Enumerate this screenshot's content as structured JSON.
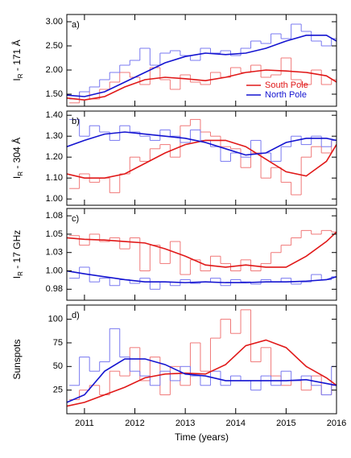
{
  "chart_data": [
    {
      "type": "line",
      "label": "a)",
      "ylabel": [
        "I",
        "R",
        " - 171 Å"
      ],
      "xlim": [
        2010.65,
        2016
      ],
      "ylim": [
        1.25,
        3.15
      ],
      "yticks": [
        {
          "value": 1.5,
          "label": "1.50"
        },
        {
          "value": 2.0,
          "label": "2.00"
        },
        {
          "value": 2.5,
          "label": "2.50"
        },
        {
          "value": 3.0,
          "label": "3.00"
        }
      ],
      "legend": "lower right",
      "series": [
        {
          "style": "step",
          "color": "#f07878",
          "x": [
            2010.7,
            2010.9,
            2011.1,
            2011.3,
            2011.5,
            2011.7,
            2011.9,
            2012.1,
            2012.3,
            2012.5,
            2012.7,
            2012.9,
            2013.1,
            2013.3,
            2013.5,
            2013.7,
            2013.9,
            2014.1,
            2014.3,
            2014.5,
            2014.7,
            2014.9,
            2015.1,
            2015.3,
            2015.5,
            2015.7,
            2015.9
          ],
          "values": [
            1.32,
            1.55,
            1.4,
            1.6,
            1.75,
            1.95,
            1.85,
            1.7,
            2.05,
            1.8,
            1.6,
            1.9,
            1.75,
            1.7,
            1.95,
            1.85,
            2.05,
            1.95,
            2.1,
            1.85,
            1.9,
            2.25,
            1.8,
            1.7,
            2.0,
            1.7,
            1.8
          ]
        },
        {
          "style": "step",
          "color": "#7878f0",
          "x": [
            2010.7,
            2010.9,
            2011.1,
            2011.3,
            2011.5,
            2011.7,
            2011.9,
            2012.1,
            2012.3,
            2012.5,
            2012.7,
            2012.9,
            2013.1,
            2013.3,
            2013.5,
            2013.7,
            2013.9,
            2014.1,
            2014.3,
            2014.5,
            2014.7,
            2014.9,
            2015.1,
            2015.3,
            2015.5,
            2015.7,
            2015.9
          ],
          "values": [
            1.4,
            1.55,
            1.65,
            1.8,
            1.95,
            2.1,
            2.2,
            2.45,
            2.1,
            2.35,
            2.4,
            2.3,
            2.2,
            2.45,
            2.35,
            2.4,
            2.3,
            2.45,
            2.6,
            2.55,
            2.75,
            2.65,
            2.95,
            2.8,
            2.6,
            2.5,
            2.65
          ]
        },
        {
          "name": "South Pole",
          "color": "#e01818",
          "x": [
            2010.65,
            2011,
            2011.4,
            2011.8,
            2012.2,
            2012.6,
            2013,
            2013.4,
            2013.8,
            2014.2,
            2014.6,
            2015,
            2015.4,
            2015.8,
            2016
          ],
          "values": [
            1.42,
            1.38,
            1.45,
            1.65,
            1.8,
            1.85,
            1.82,
            1.78,
            1.85,
            1.95,
            2.0,
            1.98,
            1.95,
            1.88,
            1.75
          ]
        },
        {
          "name": "North Pole",
          "color": "#1414d0",
          "x": [
            2010.65,
            2011,
            2011.4,
            2011.8,
            2012.2,
            2012.6,
            2013,
            2013.4,
            2013.8,
            2014.2,
            2014.6,
            2015,
            2015.4,
            2015.8,
            2016
          ],
          "values": [
            1.48,
            1.45,
            1.55,
            1.75,
            1.95,
            2.15,
            2.28,
            2.35,
            2.32,
            2.35,
            2.45,
            2.6,
            2.72,
            2.72,
            2.6
          ]
        }
      ]
    },
    {
      "type": "line",
      "label": "b)",
      "ylabel": [
        "I",
        "R",
        " - 304 Å"
      ],
      "xlim": [
        2010.65,
        2016
      ],
      "ylim": [
        0.97,
        1.42
      ],
      "yticks": [
        {
          "value": 1.0,
          "label": "1.00"
        },
        {
          "value": 1.1,
          "label": "1.10"
        },
        {
          "value": 1.2,
          "label": "1.20"
        },
        {
          "value": 1.3,
          "label": "1.30"
        },
        {
          "value": 1.4,
          "label": "1.40"
        }
      ],
      "series": [
        {
          "style": "step",
          "color": "#f07878",
          "x": [
            2010.7,
            2010.9,
            2011.1,
            2011.3,
            2011.5,
            2011.7,
            2011.9,
            2012.1,
            2012.3,
            2012.5,
            2012.7,
            2012.9,
            2013.1,
            2013.3,
            2013.5,
            2013.7,
            2013.9,
            2014.1,
            2014.3,
            2014.5,
            2014.7,
            2014.9,
            2015.1,
            2015.3,
            2015.5,
            2015.7,
            2015.9
          ],
          "values": [
            1.05,
            1.12,
            1.08,
            1.1,
            1.03,
            1.12,
            1.2,
            1.18,
            1.24,
            1.26,
            1.2,
            1.35,
            1.38,
            1.32,
            1.3,
            1.25,
            1.24,
            1.15,
            1.22,
            1.1,
            1.15,
            1.08,
            1.02,
            1.2,
            1.25,
            1.22,
            1.28
          ]
        },
        {
          "style": "step",
          "color": "#7878f0",
          "x": [
            2010.7,
            2010.9,
            2011.1,
            2011.3,
            2011.5,
            2011.7,
            2011.9,
            2012.1,
            2012.3,
            2012.5,
            2012.7,
            2012.9,
            2013.1,
            2013.3,
            2013.5,
            2013.7,
            2013.9,
            2014.1,
            2014.3,
            2014.5,
            2014.7,
            2014.9,
            2015.1,
            2015.3,
            2015.5,
            2015.7,
            2015.9
          ],
          "values": [
            1.38,
            1.3,
            1.35,
            1.32,
            1.28,
            1.35,
            1.32,
            1.3,
            1.28,
            1.33,
            1.3,
            1.27,
            1.33,
            1.28,
            1.25,
            1.18,
            1.22,
            1.2,
            1.28,
            1.22,
            1.18,
            1.25,
            1.3,
            1.26,
            1.3,
            1.25,
            1.28
          ]
        },
        {
          "color": "#e01818",
          "x": [
            2010.65,
            2011,
            2011.4,
            2011.8,
            2012.2,
            2012.6,
            2013,
            2013.4,
            2013.8,
            2014.2,
            2014.6,
            2015,
            2015.4,
            2015.8,
            2016
          ],
          "values": [
            1.12,
            1.1,
            1.1,
            1.12,
            1.17,
            1.22,
            1.26,
            1.28,
            1.28,
            1.25,
            1.19,
            1.13,
            1.11,
            1.18,
            1.26
          ]
        },
        {
          "color": "#1414d0",
          "x": [
            2010.65,
            2011,
            2011.4,
            2011.8,
            2012.2,
            2012.6,
            2013,
            2013.4,
            2013.8,
            2014.2,
            2014.6,
            2015,
            2015.4,
            2015.8,
            2016
          ],
          "values": [
            1.25,
            1.28,
            1.31,
            1.32,
            1.31,
            1.3,
            1.29,
            1.27,
            1.24,
            1.21,
            1.22,
            1.27,
            1.29,
            1.29,
            1.28
          ]
        }
      ]
    },
    {
      "type": "line",
      "label": "c)",
      "ylabel": [
        "I",
        "R",
        " - 17 GHz"
      ],
      "xlim": [
        2010.65,
        2016
      ],
      "ylim": [
        0.96,
        1.085
      ],
      "yticks": [
        {
          "value": 0.975,
          "label": "0.98"
        },
        {
          "value": 1.0,
          "label": "1.00"
        },
        {
          "value": 1.025,
          "label": "1.03"
        },
        {
          "value": 1.05,
          "label": "1.05"
        },
        {
          "value": 1.075,
          "label": "1.08"
        }
      ],
      "series": [
        {
          "style": "step",
          "color": "#f07878",
          "x": [
            2010.7,
            2010.9,
            2011.1,
            2011.3,
            2011.5,
            2011.7,
            2011.9,
            2012.1,
            2012.3,
            2012.5,
            2012.7,
            2012.9,
            2013.1,
            2013.3,
            2013.5,
            2013.7,
            2013.9,
            2014.1,
            2014.3,
            2014.5,
            2014.7,
            2014.9,
            2015.1,
            2015.3,
            2015.5,
            2015.7,
            2015.9
          ],
          "values": [
            1.048,
            1.035,
            1.05,
            1.04,
            1.045,
            1.03,
            1.045,
            1.0,
            1.035,
            1.01,
            1.04,
            0.995,
            1.015,
            1.0,
            1.02,
            1.01,
            1.0,
            1.015,
            1.0,
            1.01,
            1.025,
            1.035,
            1.045,
            1.055,
            1.05,
            1.055,
            1.053
          ]
        },
        {
          "style": "step",
          "color": "#7878f0",
          "x": [
            2010.7,
            2010.9,
            2011.1,
            2011.3,
            2011.5,
            2011.7,
            2011.9,
            2012.1,
            2012.3,
            2012.5,
            2012.7,
            2012.9,
            2013.1,
            2013.3,
            2013.5,
            2013.7,
            2013.9,
            2014.1,
            2014.3,
            2014.5,
            2014.7,
            2014.9,
            2015.1,
            2015.3,
            2015.5,
            2015.7,
            2015.9
          ],
          "values": [
            0.99,
            1.005,
            0.985,
            0.99,
            0.98,
            0.988,
            0.983,
            0.99,
            0.975,
            0.985,
            0.98,
            0.988,
            0.983,
            0.985,
            0.99,
            0.98,
            0.988,
            0.985,
            0.982,
            0.988,
            0.985,
            0.99,
            0.982,
            0.985,
            0.995,
            0.988,
            0.992
          ]
        },
        {
          "color": "#e01818",
          "x": [
            2010.65,
            2011,
            2011.4,
            2011.8,
            2012.2,
            2012.6,
            2013,
            2013.4,
            2013.8,
            2014.2,
            2014.6,
            2015,
            2015.4,
            2015.8,
            2016
          ],
          "values": [
            1.045,
            1.043,
            1.042,
            1.04,
            1.038,
            1.03,
            1.02,
            1.008,
            1.005,
            1.008,
            1.005,
            1.005,
            1.02,
            1.04,
            1.053
          ]
        },
        {
          "color": "#1414d0",
          "x": [
            2010.65,
            2011,
            2011.4,
            2011.8,
            2012.2,
            2012.6,
            2013,
            2013.4,
            2013.8,
            2014.2,
            2014.6,
            2015,
            2015.4,
            2015.8,
            2016
          ],
          "values": [
            1.0,
            0.996,
            0.992,
            0.988,
            0.985,
            0.985,
            0.984,
            0.985,
            0.984,
            0.984,
            0.985,
            0.985,
            0.986,
            0.988,
            0.992
          ]
        }
      ]
    },
    {
      "type": "line",
      "label": "d)",
      "ylabel": [
        "Sunspots"
      ],
      "xlabel": "Time (years)",
      "xlim": [
        2010.65,
        2016
      ],
      "ylim": [
        0,
        115
      ],
      "xticks": [
        2011,
        2012,
        2013,
        2014,
        2015,
        2016
      ],
      "yticks": [
        25,
        50,
        75,
        100
      ],
      "series": [
        {
          "style": "step",
          "color": "#f07878",
          "x": [
            2010.7,
            2010.9,
            2011.1,
            2011.3,
            2011.5,
            2011.7,
            2011.9,
            2012.1,
            2012.3,
            2012.5,
            2012.7,
            2012.9,
            2013.1,
            2013.3,
            2013.5,
            2013.7,
            2013.9,
            2014.1,
            2014.3,
            2014.5,
            2014.7,
            2014.9,
            2015.1,
            2015.3,
            2015.5,
            2015.7,
            2015.9
          ],
          "values": [
            15,
            25,
            30,
            20,
            45,
            40,
            70,
            35,
            60,
            20,
            50,
            30,
            75,
            45,
            80,
            100,
            85,
            110,
            55,
            70,
            40,
            30,
            35,
            25,
            40,
            20,
            30
          ]
        },
        {
          "style": "step",
          "color": "#7878f0",
          "x": [
            2010.7,
            2010.9,
            2011.1,
            2011.3,
            2011.5,
            2011.7,
            2011.9,
            2012.1,
            2012.3,
            2012.5,
            2012.7,
            2012.9,
            2013.1,
            2013.3,
            2013.5,
            2013.7,
            2013.9,
            2014.1,
            2014.3,
            2014.5,
            2014.7,
            2014.9,
            2015.1,
            2015.3,
            2015.5,
            2015.7,
            2015.9
          ],
          "values": [
            30,
            60,
            45,
            55,
            90,
            60,
            45,
            40,
            30,
            45,
            35,
            50,
            40,
            30,
            45,
            30,
            40,
            35,
            25,
            40,
            30,
            45,
            35,
            40,
            30,
            20,
            50
          ]
        },
        {
          "color": "#e01818",
          "x": [
            2010.65,
            2011,
            2011.4,
            2011.8,
            2012.2,
            2012.6,
            2013,
            2013.4,
            2013.8,
            2014.2,
            2014.6,
            2015,
            2015.4,
            2015.8,
            2016
          ],
          "values": [
            8,
            12,
            20,
            28,
            38,
            42,
            43,
            42,
            52,
            72,
            78,
            70,
            50,
            38,
            30
          ]
        },
        {
          "color": "#1414d0",
          "x": [
            2010.65,
            2011,
            2011.4,
            2011.8,
            2012.2,
            2012.6,
            2013,
            2013.4,
            2013.8,
            2014.2,
            2014.6,
            2015,
            2015.4,
            2015.8,
            2016
          ],
          "values": [
            12,
            20,
            45,
            58,
            58,
            52,
            42,
            40,
            35,
            35,
            35,
            35,
            36,
            32,
            30
          ]
        }
      ]
    }
  ]
}
